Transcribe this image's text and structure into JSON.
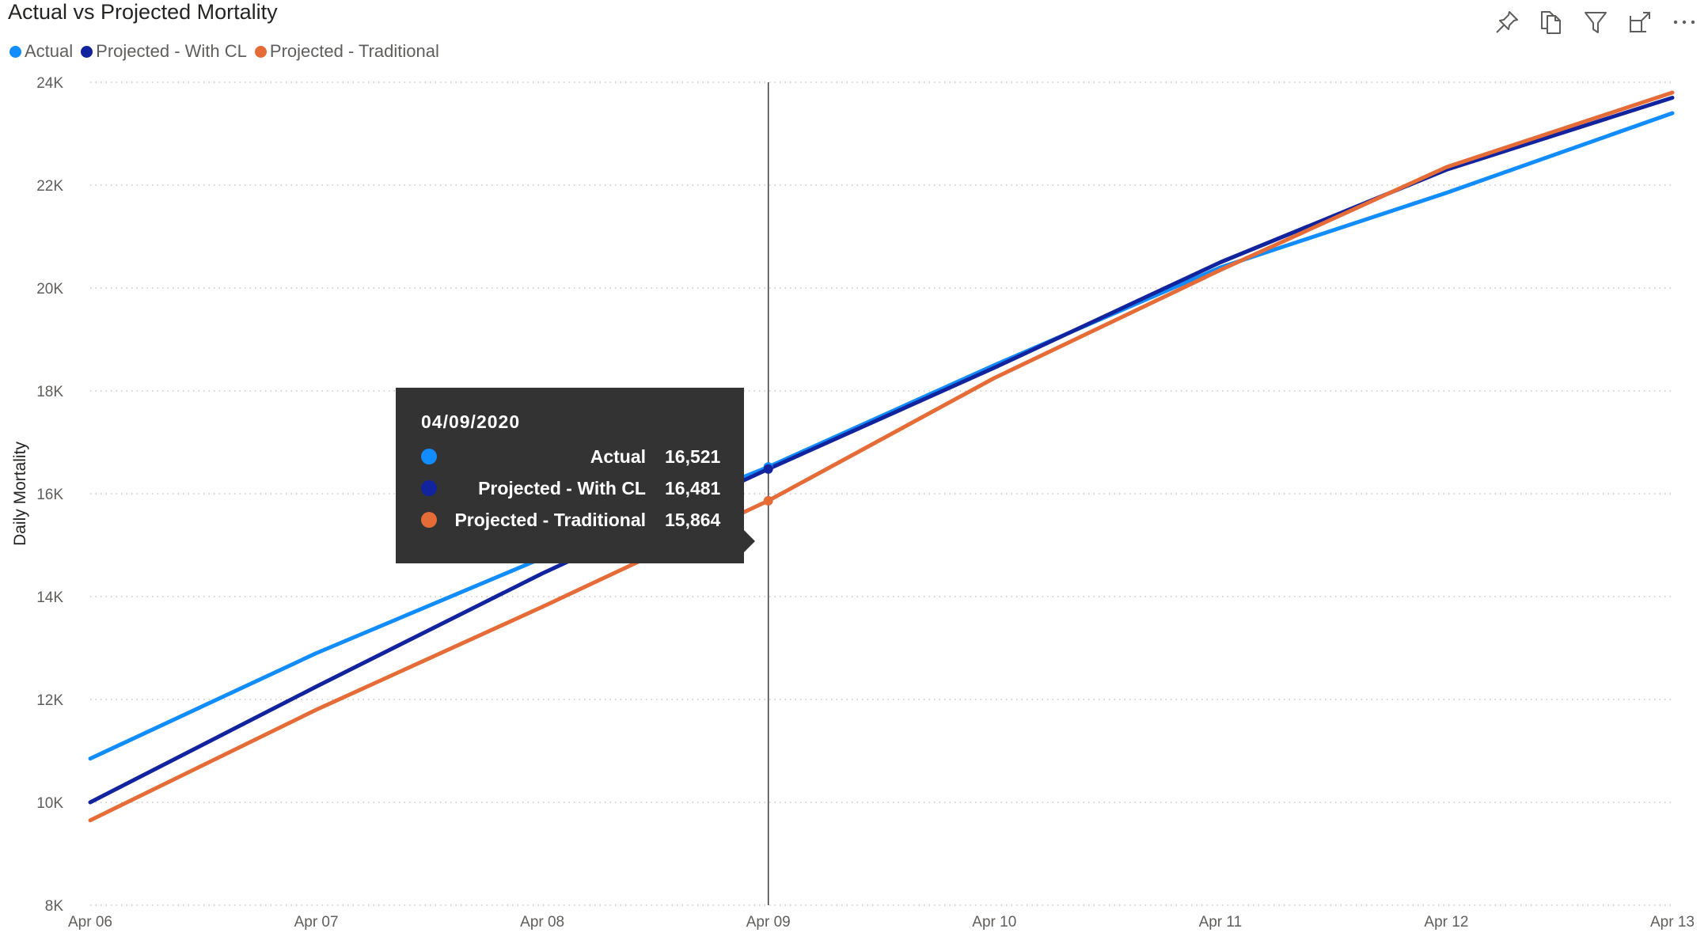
{
  "title": "Actual vs Projected Mortality",
  "legend": [
    {
      "label": "Actual",
      "color": "#118DFF"
    },
    {
      "label": "Projected - With CL",
      "color": "#12239E"
    },
    {
      "label": "Projected - Traditional",
      "color": "#E66C37"
    }
  ],
  "toolbar": {
    "icons": [
      "pin-icon",
      "copy-icon",
      "filter-icon",
      "focus-mode-icon",
      "more-options-icon"
    ]
  },
  "tooltip": {
    "date": "04/09/2020",
    "rows": [
      {
        "name": "Actual",
        "value": "16,521",
        "color": "#118DFF"
      },
      {
        "name": "Projected - With CL",
        "value": "16,481",
        "color": "#12239E"
      },
      {
        "name": "Projected - Traditional",
        "value": "15,864",
        "color": "#E66C37"
      }
    ]
  },
  "chart_data": {
    "type": "line",
    "title": "Actual vs Projected Mortality",
    "xlabel": "",
    "ylabel": "Daily Mortality",
    "categories": [
      "Apr 06",
      "Apr 07",
      "Apr 08",
      "Apr 09",
      "Apr 10",
      "Apr 11",
      "Apr 12",
      "Apr 13"
    ],
    "yticks": [
      8000,
      10000,
      12000,
      14000,
      16000,
      18000,
      20000,
      22000,
      24000
    ],
    "ytick_labels": [
      "8K",
      "10K",
      "12K",
      "14K",
      "16K",
      "18K",
      "20K",
      "22K",
      "24K"
    ],
    "ylim": [
      8000,
      24000
    ],
    "grid": true,
    "legend_position": "top-left",
    "highlight_category": "Apr 09",
    "series": [
      {
        "name": "Actual",
        "color": "#118DFF",
        "values": [
          10850,
          12900,
          14750,
          16521,
          18500,
          20400,
          21850,
          23400
        ]
      },
      {
        "name": "Projected - With CL",
        "color": "#12239E",
        "values": [
          10000,
          12250,
          14450,
          16481,
          18450,
          20500,
          22300,
          23700
        ]
      },
      {
        "name": "Projected - Traditional",
        "color": "#E66C37",
        "values": [
          9650,
          11800,
          13800,
          15864,
          18250,
          20350,
          22350,
          23800
        ]
      }
    ]
  }
}
